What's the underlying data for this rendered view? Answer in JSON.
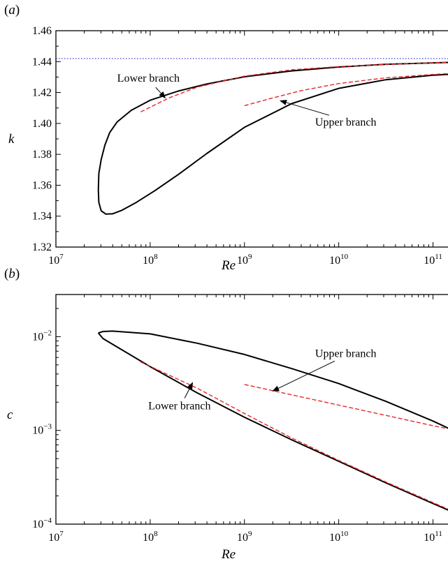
{
  "chart_data": [
    {
      "panel_label_open": "(",
      "panel_label_letter": "a",
      "panel_label_close": ")",
      "type": "line",
      "xscale": "log",
      "xlim_exp": [
        7,
        11.3
      ],
      "ylim": [
        1.32,
        1.46
      ],
      "xlabel": "Re",
      "ylabel": "k",
      "x_ticks": [
        {
          "base": "10",
          "exp": "7",
          "value_exp": 7
        },
        {
          "base": "10",
          "exp": "8",
          "value_exp": 8
        },
        {
          "base": "10",
          "exp": "9",
          "value_exp": 9
        },
        {
          "base": "10",
          "exp": "10",
          "value_exp": 10
        },
        {
          "base": "10",
          "exp": "11",
          "value_exp": 11
        }
      ],
      "y_ticks": [
        {
          "label": "1.32",
          "value": 1.32
        },
        {
          "label": "1.34",
          "value": 1.34
        },
        {
          "label": "1.36",
          "value": 1.36
        },
        {
          "label": "1.38",
          "value": 1.38
        },
        {
          "label": "1.40",
          "value": 1.4
        },
        {
          "label": "1.42",
          "value": 1.42
        },
        {
          "label": "1.44",
          "value": 1.44
        },
        {
          "label": "1.46",
          "value": 1.46
        }
      ],
      "reference_line": {
        "y": 1.442,
        "color": "#3b3bdb",
        "style": "dotted"
      },
      "series": [
        {
          "role": "neutral-curve",
          "color": "#000000",
          "style": "solid",
          "log10_x": [
            11.3,
            11.0,
            10.5,
            10.0,
            9.5,
            9.0,
            8.6,
            8.3,
            8.0,
            7.8,
            7.65,
            7.57,
            7.52,
            7.48,
            7.455,
            7.45,
            7.455,
            7.48,
            7.53,
            7.6,
            7.7,
            7.85,
            8.05,
            8.3,
            8.6,
            9.0,
            9.5,
            10.0,
            10.5,
            11.0,
            11.18,
            11.21,
            11.22,
            11.23,
            11.3
          ],
          "y": [
            1.4397,
            1.4392,
            1.4383,
            1.4365,
            1.434,
            1.4302,
            1.4255,
            1.421,
            1.415,
            1.4085,
            1.401,
            1.394,
            1.386,
            1.3765,
            1.3675,
            1.357,
            1.349,
            1.3435,
            1.3413,
            1.3415,
            1.3438,
            1.3488,
            1.3565,
            1.367,
            1.3805,
            1.3975,
            1.4128,
            1.4227,
            1.4283,
            1.4312,
            1.4318,
            1.4312,
            1.4313,
            1.4316,
            1.4318
          ]
        },
        {
          "role": "asymptote-lower",
          "color": "#e8262a",
          "style": "dashed",
          "log10_x": [
            7.9,
            8.2,
            8.5,
            9.0,
            9.5,
            10.0,
            10.5,
            11.0,
            11.3
          ],
          "y": [
            1.4075,
            1.4165,
            1.4235,
            1.4306,
            1.4347,
            1.4368,
            1.4382,
            1.4392,
            1.4397
          ]
        },
        {
          "role": "asymptote-upper",
          "color": "#e8262a",
          "style": "dashed",
          "log10_x": [
            9.0,
            9.3,
            9.6,
            10.0,
            10.5,
            11.0,
            11.3
          ],
          "y": [
            1.4115,
            1.4165,
            1.4212,
            1.4258,
            1.4295,
            1.4317,
            1.4327
          ]
        }
      ],
      "annotations": [
        {
          "text": "Lower branch",
          "x_exp": 7.65,
          "y": 1.427,
          "arrow_to_x_exp": 8.16,
          "arrow_to_y": 1.4165
        },
        {
          "text": "Upper branch",
          "x_exp": 9.75,
          "y": 1.3985,
          "arrow_to_x_exp": 9.38,
          "arrow_to_y": 1.4147
        }
      ]
    },
    {
      "panel_label_open": "(",
      "panel_label_letter": "b",
      "panel_label_close": ")",
      "type": "line",
      "xscale": "log",
      "yscale": "log",
      "xlim_exp": [
        7,
        11.3
      ],
      "ylim_exp": [
        -4,
        -1.55
      ],
      "xlabel": "Re",
      "ylabel": "c",
      "x_ticks": [
        {
          "base": "10",
          "exp": "7",
          "value_exp": 7
        },
        {
          "base": "10",
          "exp": "8",
          "value_exp": 8
        },
        {
          "base": "10",
          "exp": "9",
          "value_exp": 9
        },
        {
          "base": "10",
          "exp": "10",
          "value_exp": 10
        },
        {
          "base": "10",
          "exp": "11",
          "value_exp": 11
        }
      ],
      "y_ticks": [
        {
          "base": "10",
          "exp": "−4",
          "value_exp": -4
        },
        {
          "base": "10",
          "exp": "−3",
          "value_exp": -3
        },
        {
          "base": "10",
          "exp": "−2",
          "value_exp": -2
        }
      ],
      "series": [
        {
          "role": "neutral-curve",
          "color": "#000000",
          "style": "solid",
          "log10_x": [
            7.45,
            7.5,
            8.0,
            8.5,
            9.0,
            9.5,
            10.0,
            10.5,
            11.0,
            11.3,
            11.3,
            11.23,
            11.22,
            11.21,
            11.18,
            11.0,
            10.5,
            10.0,
            9.5,
            9.0,
            8.5,
            8.0,
            7.6,
            7.5,
            7.45
          ],
          "log10_y": [
            -1.96,
            -2.02,
            -2.32,
            -2.6,
            -2.86,
            -3.1,
            -3.33,
            -3.56,
            -3.78,
            -3.91,
            -2.99,
            -2.94,
            -2.945,
            -2.97,
            -2.985,
            -2.9,
            -2.69,
            -2.5,
            -2.34,
            -2.19,
            -2.07,
            -1.97,
            -1.94,
            -1.945,
            -1.96
          ]
        },
        {
          "role": "asymptote-lower",
          "color": "#e8262a",
          "style": "dashed",
          "log10_x": [
            7.9,
            8.5,
            9.0,
            9.5,
            10.0,
            10.5,
            11.0,
            11.3
          ],
          "log10_y": [
            -2.27,
            -2.55,
            -2.82,
            -3.08,
            -3.32,
            -3.55,
            -3.77,
            -3.9
          ]
        },
        {
          "role": "asymptote-upper",
          "color": "#e8262a",
          "style": "dashed",
          "log10_x": [
            9.0,
            9.5,
            10.0,
            10.5,
            11.0,
            11.3
          ],
          "log10_y": [
            -2.51,
            -2.62,
            -2.73,
            -2.84,
            -2.95,
            -3.01
          ]
        }
      ],
      "annotations": [
        {
          "text": "Upper branch",
          "x_exp": 9.75,
          "y_exp": -2.215,
          "arrow_to_x_exp": 9.3,
          "arrow_to_y_exp": -2.58
        },
        {
          "text": "Lower branch",
          "x_exp": 7.98,
          "y_exp": -2.775,
          "arrow_to_x_exp": 8.45,
          "arrow_to_y_exp": -2.49
        }
      ]
    }
  ]
}
